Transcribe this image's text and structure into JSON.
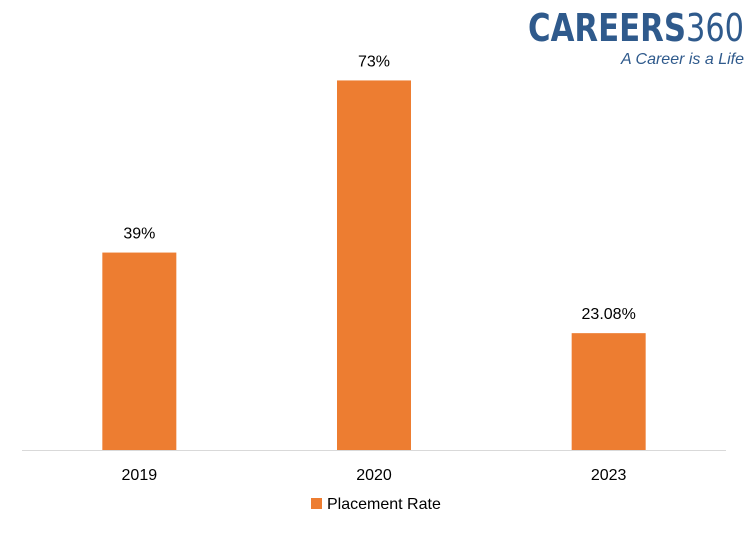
{
  "logo": {
    "brand_main": "CAREERS",
    "brand_number": "360",
    "tagline": "A Career is a Life",
    "brand_color": "#2F5A8C"
  },
  "chart_data": {
    "type": "bar",
    "categories": [
      "2019",
      "2020",
      "2023"
    ],
    "series": [
      {
        "name": "Placement Rate",
        "values": [
          39,
          73,
          23.08
        ],
        "data_labels": [
          "39%",
          "73%",
          "23.08%"
        ],
        "color": "#ED7D31"
      }
    ],
    "title": "",
    "xlabel": "",
    "ylabel": "",
    "ylim": [
      0,
      80
    ],
    "grid": false,
    "legend_position": "bottom"
  }
}
